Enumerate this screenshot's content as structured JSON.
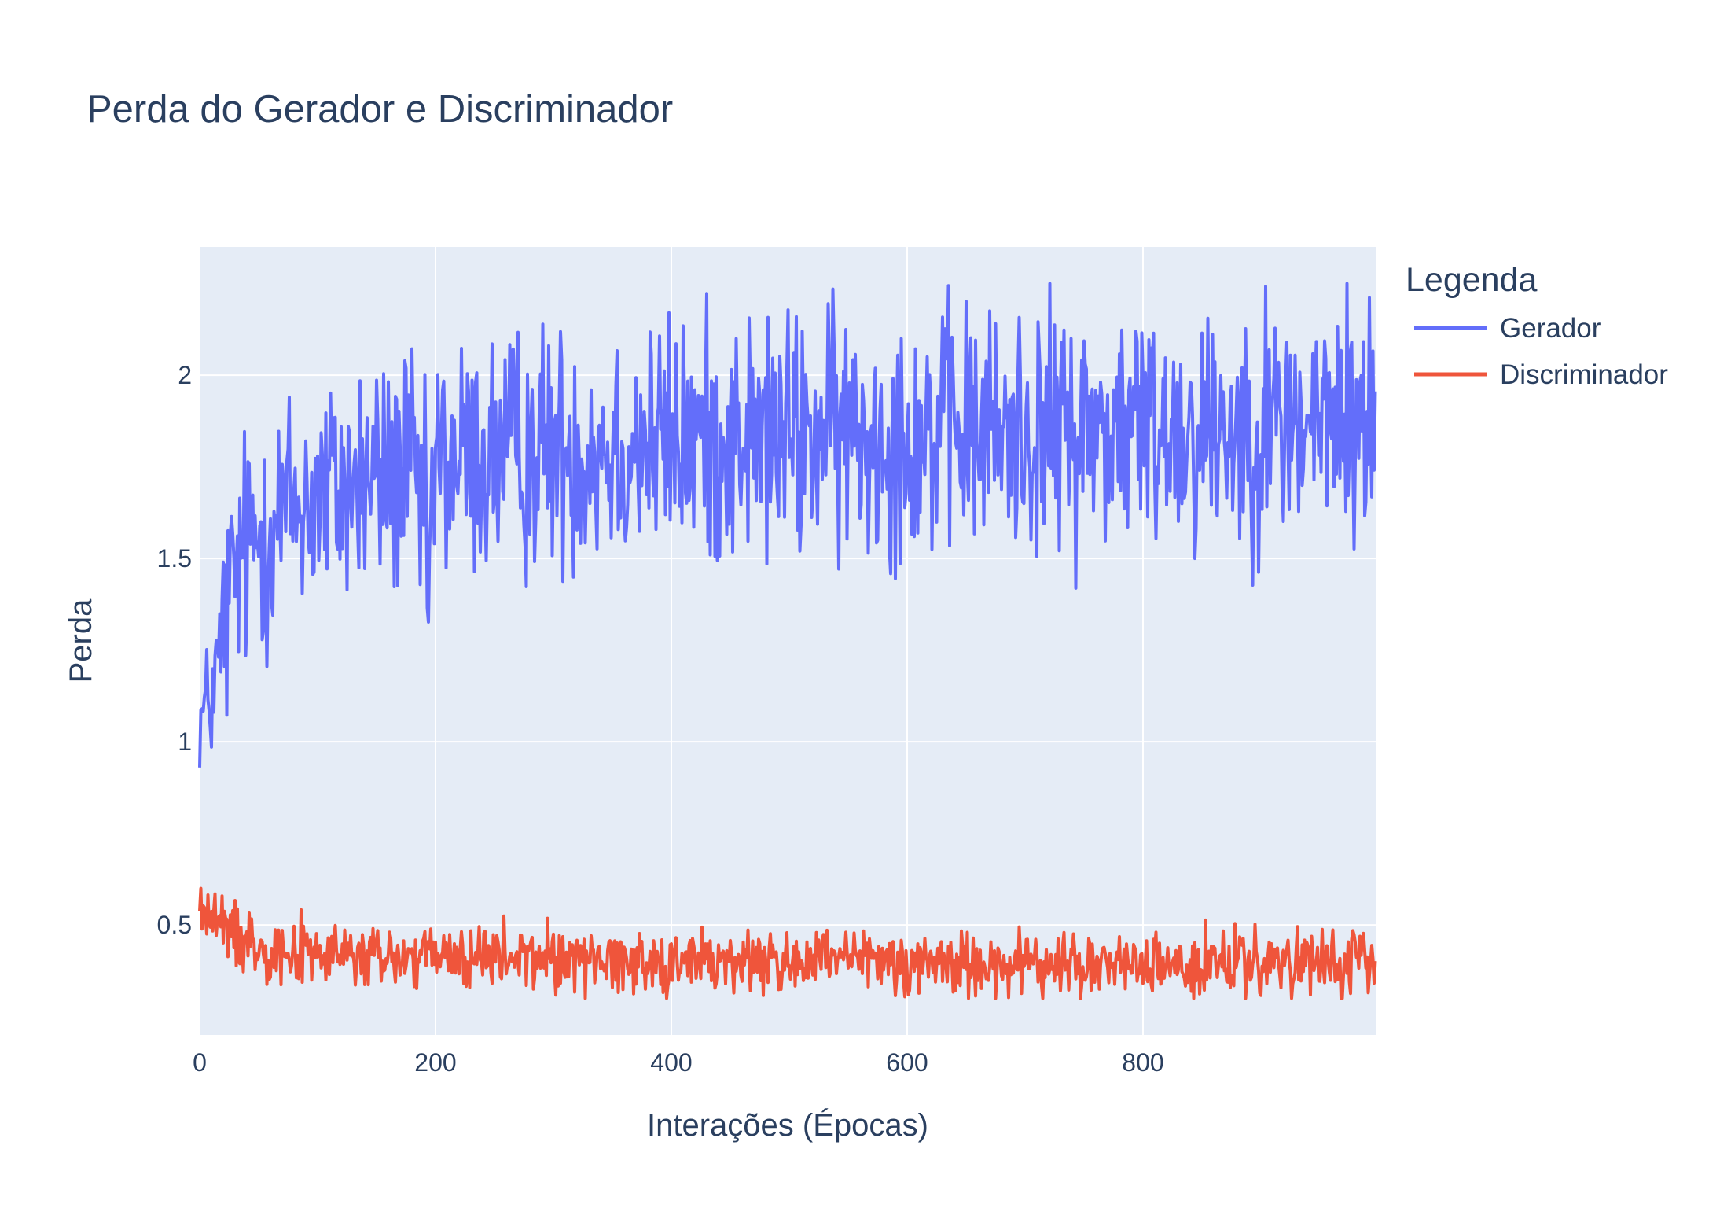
{
  "chart_data": {
    "type": "line",
    "title": "Perda do Gerador e Discriminador",
    "xlabel": "Interações (Épocas)",
    "ylabel": "Perda",
    "xlim": [
      0,
      998
    ],
    "ylim": [
      0.2,
      2.35
    ],
    "xticks": [
      0,
      200,
      400,
      600,
      800
    ],
    "xtick_labels": [
      "0",
      "200",
      "400",
      "600",
      "800"
    ],
    "yticks": [
      0.5,
      1,
      1.5,
      2
    ],
    "ytick_labels": [
      "0.5",
      "1",
      "1.5",
      "2"
    ],
    "grid": true,
    "legend": {
      "title": "Legenda",
      "placement": "right"
    },
    "colors": {
      "plot_bg": "#e5ecf6",
      "grid": "#ffffff",
      "text": "#2a3f5f"
    },
    "series": [
      {
        "name": "Gerador",
        "color": "#636efa",
        "x": [
          0,
          10,
          20,
          30,
          40,
          50,
          60,
          70,
          80,
          90,
          100,
          120,
          140,
          160,
          180,
          195,
          200,
          250,
          300,
          350,
          400,
          450,
          500,
          550,
          600,
          650,
          680,
          700,
          750,
          800,
          850,
          900,
          950,
          998
        ],
        "y": [
          1.05,
          1.12,
          1.3,
          1.45,
          1.52,
          1.57,
          1.6,
          1.62,
          1.64,
          1.66,
          1.67,
          1.69,
          1.71,
          1.73,
          1.74,
          1.5,
          1.76,
          1.78,
          1.8,
          1.81,
          1.82,
          1.83,
          1.83,
          1.84,
          1.84,
          1.85,
          1.84,
          1.85,
          1.85,
          1.86,
          1.86,
          1.87,
          1.87,
          1.88
        ],
        "min": 0.93,
        "max": 2.25,
        "points": 998
      },
      {
        "name": "Discriminador",
        "color": "#ef553b",
        "x": [
          0,
          10,
          20,
          40,
          60,
          80,
          100,
          150,
          200,
          300,
          400,
          500,
          600,
          700,
          800,
          900,
          998
        ],
        "y": [
          0.55,
          0.52,
          0.49,
          0.46,
          0.44,
          0.43,
          0.42,
          0.41,
          0.41,
          0.41,
          0.4,
          0.4,
          0.4,
          0.39,
          0.39,
          0.39,
          0.39
        ],
        "min": 0.3,
        "max": 0.6,
        "points": 998
      }
    ]
  }
}
